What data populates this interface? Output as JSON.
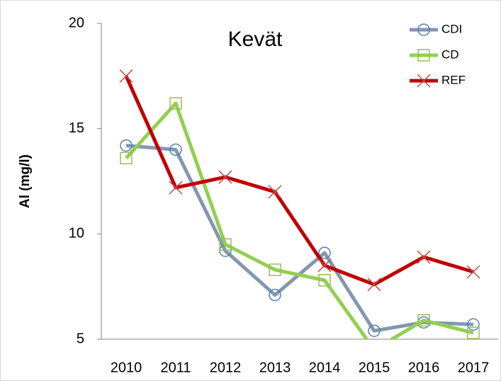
{
  "chart_data": {
    "type": "line",
    "title": "Kevät",
    "y_label": "Al (mg/l)",
    "categories": [
      "2010",
      "2011",
      "2012",
      "2013",
      "2014",
      "2015",
      "2016",
      "2017"
    ],
    "series": [
      {
        "name": "CDI",
        "color": "#8497b0",
        "marker": "circle",
        "marker_color": "#4f81bd",
        "values": [
          14.2,
          14.0,
          9.2,
          7.1,
          9.1,
          5.4,
          5.8,
          5.7
        ]
      },
      {
        "name": "CD",
        "color": "#92d050",
        "marker": "square",
        "marker_color": "#9bbb59",
        "values": [
          13.6,
          16.2,
          9.5,
          8.3,
          7.8,
          4.5,
          5.9,
          5.3
        ]
      },
      {
        "name": "REF",
        "color": "#c00000",
        "marker": "cross",
        "marker_color": "#c0504d",
        "values": [
          17.5,
          12.2,
          12.7,
          12.0,
          8.5,
          7.6,
          8.9,
          8.2
        ]
      }
    ],
    "ylim": [
      5,
      20
    ],
    "yticks": [
      5,
      10,
      15,
      20
    ],
    "grid": false,
    "legend": "top-right"
  }
}
